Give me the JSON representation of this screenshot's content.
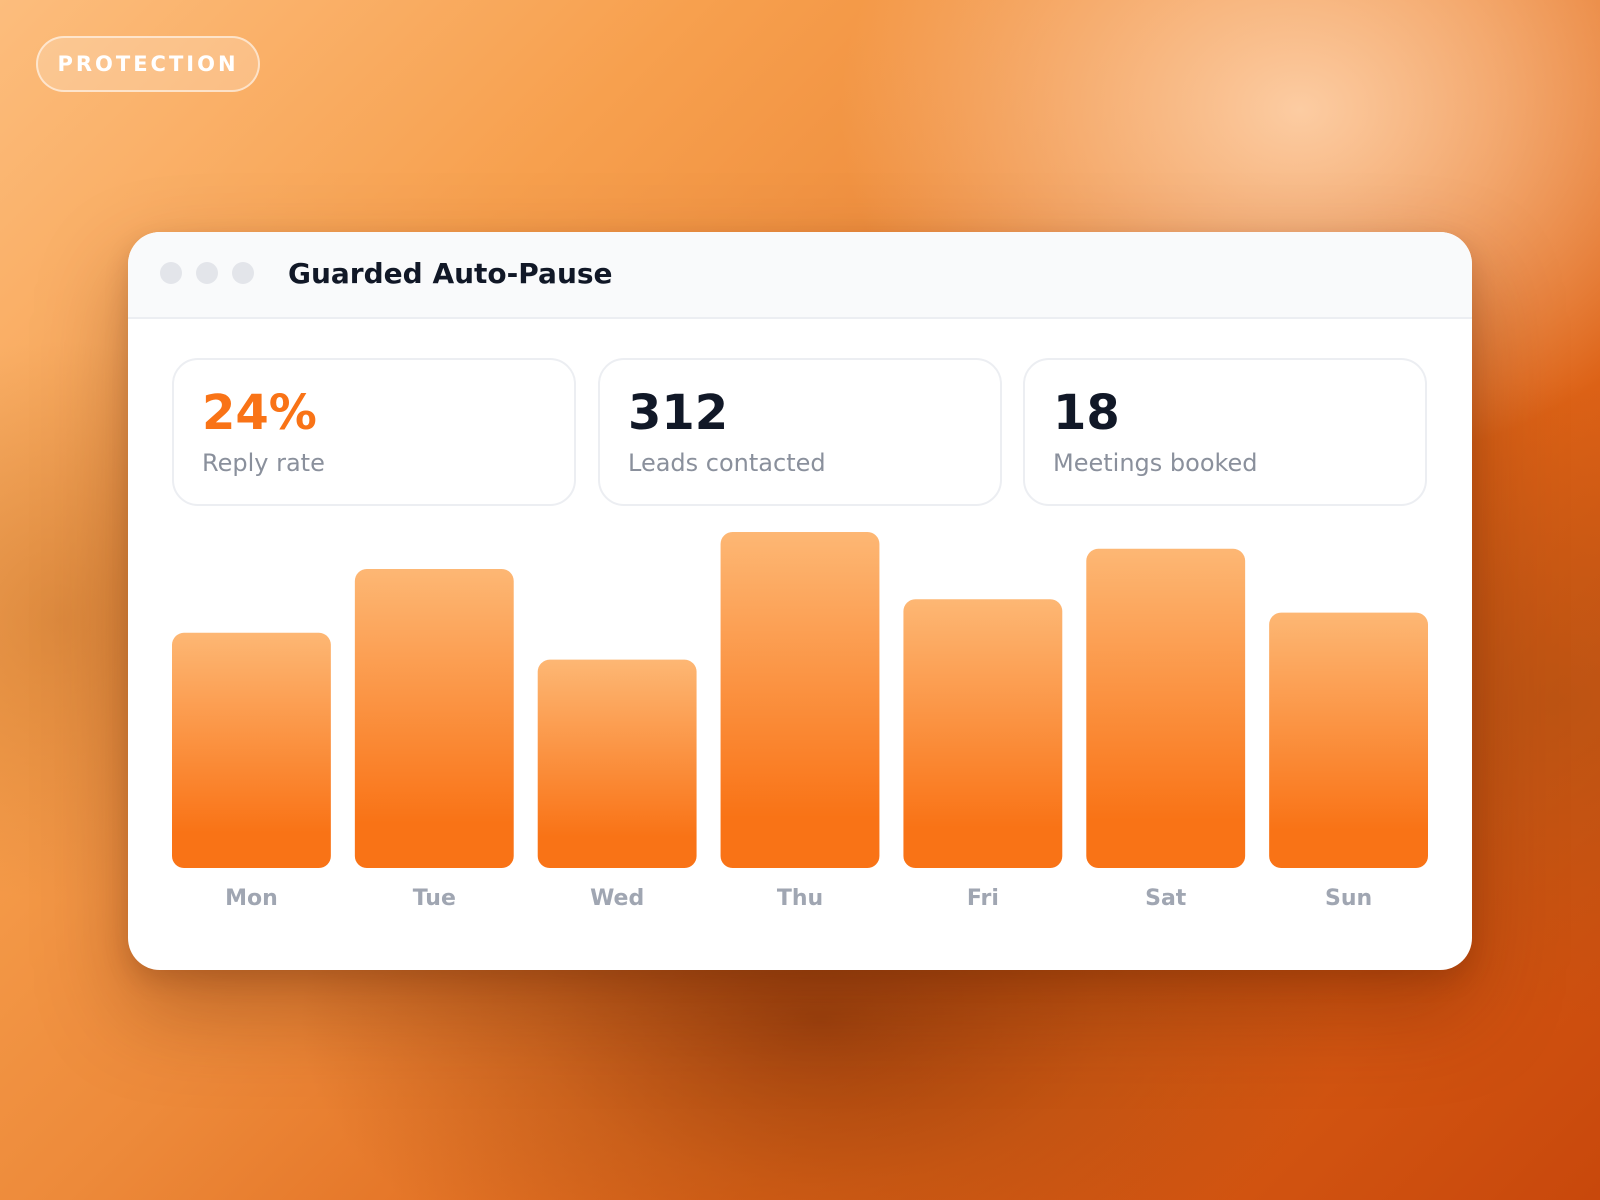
{
  "badge": {
    "label": "PROTECTION"
  },
  "window": {
    "title": "Guarded Auto-Pause"
  },
  "stats": [
    {
      "value": "24%",
      "label": "Reply rate"
    },
    {
      "value": "312",
      "label": "Leads contacted"
    },
    {
      "value": "18",
      "label": "Meetings booked"
    }
  ],
  "colors": {
    "accent": "#f97316",
    "bar_top": "#fdb774",
    "bar_bottom": "#f97316",
    "day_label": "#a0a6b2",
    "value_text": "#111827"
  },
  "chart_data": {
    "type": "bar",
    "categories": [
      "Mon",
      "Tue",
      "Wed",
      "Thu",
      "Fri",
      "Sat",
      "Sun"
    ],
    "values": [
      70,
      89,
      62,
      100,
      80,
      95,
      76
    ],
    "ylim": [
      0,
      100
    ],
    "title": "",
    "xlabel": "",
    "ylabel": "",
    "grid": false
  }
}
